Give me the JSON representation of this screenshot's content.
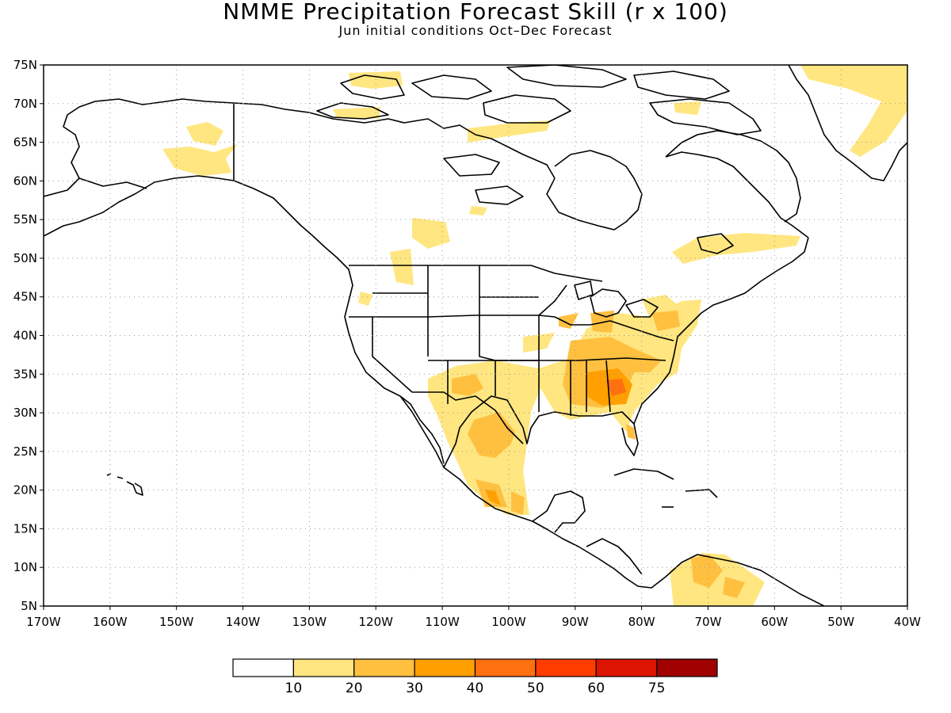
{
  "title": "NMME Precipitation Forecast Skill (r x 100)",
  "subtitle": "Jun initial conditions  Oct–Dec Forecast",
  "map": {
    "lon_range": [
      -170,
      -40
    ],
    "lat_range": [
      5,
      75
    ],
    "lon_ticks": [
      "170W",
      "160W",
      "150W",
      "140W",
      "130W",
      "120W",
      "110W",
      "100W",
      "90W",
      "80W",
      "70W",
      "60W",
      "50W",
      "40W"
    ],
    "lat_ticks": [
      "5N",
      "10N",
      "15N",
      "20N",
      "25N",
      "30N",
      "35N",
      "40N",
      "45N",
      "50N",
      "55N",
      "60N",
      "65N",
      "70N",
      "75N"
    ],
    "grid": "dotted"
  },
  "colorbar": {
    "labels": [
      "10",
      "20",
      "30",
      "40",
      "50",
      "60",
      "75"
    ],
    "colors": [
      "#ffffff",
      "#ffe680",
      "#ffc040",
      "#ffa000",
      "#ff7010",
      "#ff3c00",
      "#dc1400",
      "#a00000"
    ]
  }
}
